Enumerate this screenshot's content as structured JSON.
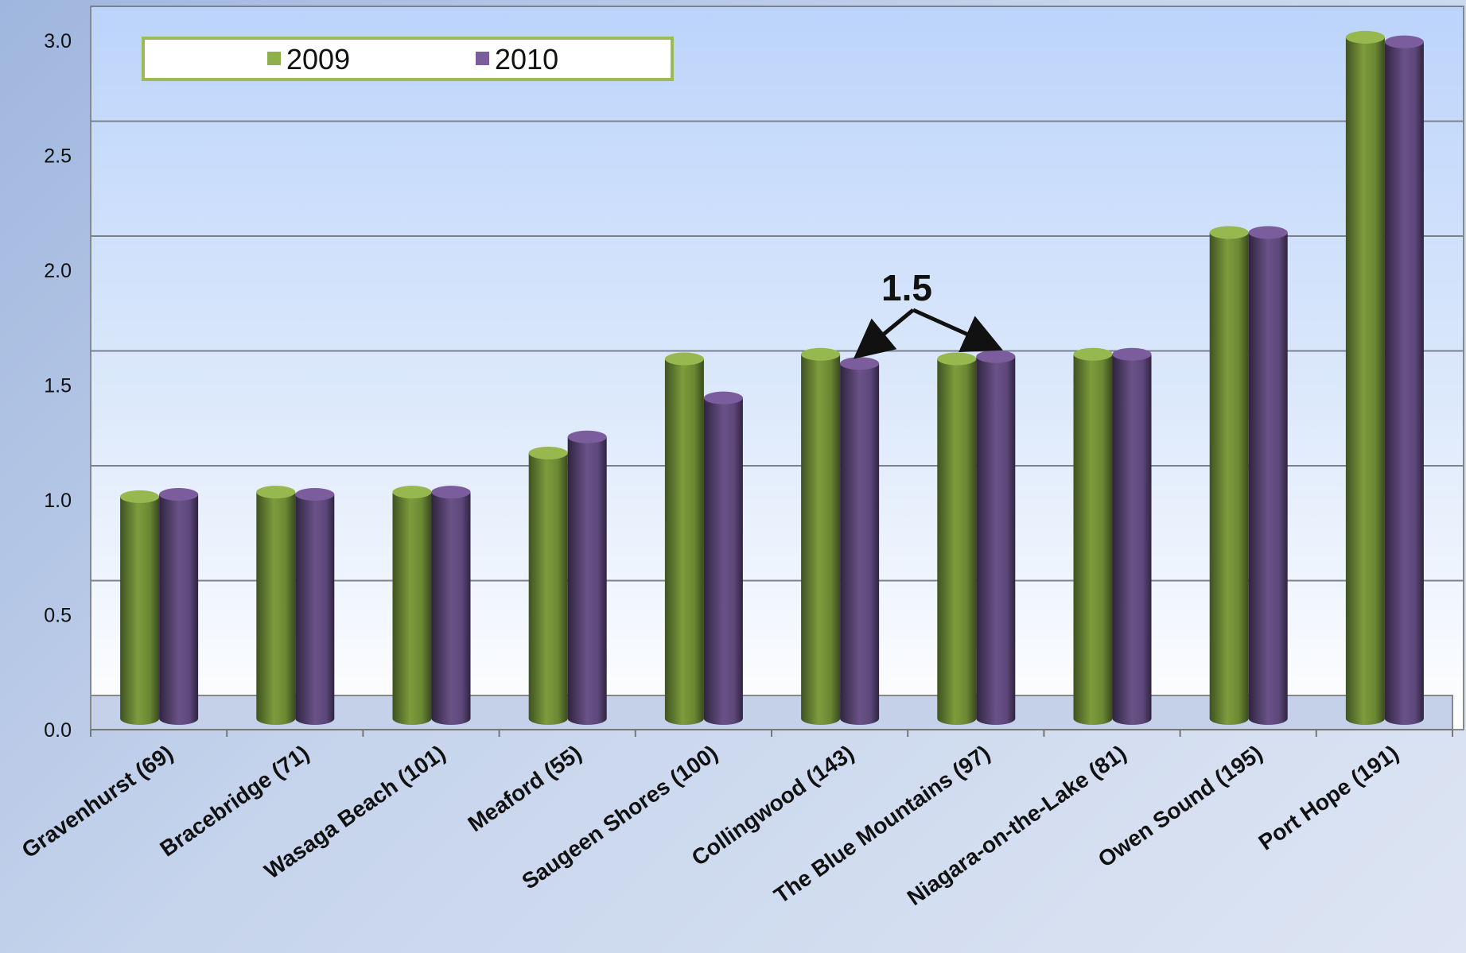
{
  "chart_data": {
    "type": "bar",
    "categories": [
      "Gravenhurst (69)",
      "Bracebridge (71)",
      "Wasaga Beach (101)",
      "Meaford (55)",
      "Saugeen Shores (100)",
      "Collingwood (143)",
      "The Blue Mountains (97)",
      "Niagara-on-the-Lake (81)",
      "Owen Sound (195)",
      "Port Hope (191)"
    ],
    "series": [
      {
        "name": "2009",
        "color": "#7e9c3c",
        "values": [
          0.9,
          0.92,
          0.92,
          1.09,
          1.5,
          1.52,
          1.5,
          1.52,
          2.05,
          2.9
        ]
      },
      {
        "name": "2010",
        "color": "#6a5288",
        "values": [
          0.91,
          0.91,
          0.92,
          1.16,
          1.33,
          1.48,
          1.51,
          1.52,
          2.05,
          2.88
        ]
      }
    ],
    "ylim": [
      0,
      3.0
    ],
    "yticks": [
      "0.0",
      "0.5",
      "1.0",
      "1.5",
      "2.0",
      "2.5",
      "3.0"
    ],
    "grid": true,
    "legend_position": "top-left",
    "annotation": {
      "text": "1.5",
      "targets": [
        [
          5,
          1
        ],
        [
          6,
          1
        ]
      ]
    }
  }
}
